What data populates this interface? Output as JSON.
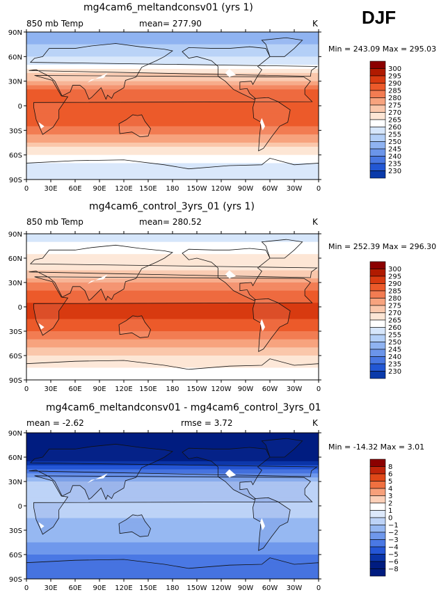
{
  "season": "DJF",
  "x_ticks": [
    "0",
    "30E",
    "60E",
    "90E",
    "120E",
    "150E",
    "180",
    "150W",
    "120W",
    "90W",
    "60W",
    "30W",
    "0"
  ],
  "y_ticks": [
    "90N",
    "60N",
    "30N",
    "0",
    "30S",
    "60S",
    "90S"
  ],
  "panels": [
    {
      "title": "mg4cam6_meltandconsv01 (yrs 1)",
      "left_label": "850  mb Temp",
      "mean_label": "mean= 277.90",
      "rmse_label": "",
      "units": "K",
      "minmax": "Min = 243.09  Max = 295.03",
      "colorbar_levels": [
        "300",
        "295",
        "290",
        "285",
        "280",
        "275",
        "270",
        "265",
        "260",
        "255",
        "250",
        "245",
        "240",
        "235",
        "230"
      ]
    },
    {
      "title": "mg4cam6_control_3yrs_01 (yrs 1)",
      "left_label": "850  mb Temp",
      "mean_label": "mean= 280.52",
      "rmse_label": "",
      "units": "K",
      "minmax": "Min = 252.39  Max = 296.30",
      "colorbar_levels": [
        "300",
        "295",
        "290",
        "285",
        "280",
        "275",
        "270",
        "265",
        "260",
        "255",
        "250",
        "245",
        "240",
        "235",
        "230"
      ]
    },
    {
      "title": "mg4cam6_meltandconsv01 - mg4cam6_control_3yrs_01",
      "left_label": "mean =   -2.62",
      "mean_label": "rmse =    3.72",
      "rmse_label": "",
      "units": "K",
      "minmax": "Min =  -14.32  Max =    3.01",
      "colorbar_levels": [
        "8",
        "6",
        "5",
        "4",
        "3",
        "2",
        "1",
        "0",
        "−1",
        "−2",
        "−3",
        "−4",
        "−5",
        "−6",
        "−8"
      ]
    }
  ],
  "colors": {
    "temp_scale": [
      "#8b0000",
      "#b01a00",
      "#d83a10",
      "#ec5a2a",
      "#f27c52",
      "#f7a37e",
      "#fac7ab",
      "#fde6d5",
      "#ffffff",
      "#d6e6fb",
      "#b3cff7",
      "#8fb3f1",
      "#6b95ea",
      "#4877e2",
      "#2257d4",
      "#0a3aaa",
      "#00207a"
    ],
    "diff_scale": [
      "#8b0000",
      "#c0240a",
      "#e04818",
      "#f07040",
      "#f7a07a",
      "#fcd0b8",
      "#ffffff",
      "#dde9fb",
      "#bdd3f7",
      "#96b8f2",
      "#6f98ec",
      "#4a78e4",
      "#2456d6",
      "#0a34a8",
      "#001c80"
    ]
  },
  "chart_data": [
    {
      "type": "heatmap",
      "title": "mg4cam6_meltandconsv01 (yrs 1)",
      "variable": "850 mb Temp",
      "units": "K",
      "mean": 277.9,
      "min": 243.09,
      "max": 295.03,
      "x_range": [
        0,
        360
      ],
      "y_range": [
        -90,
        90
      ],
      "color_levels": [
        230,
        235,
        240,
        245,
        250,
        255,
        260,
        265,
        270,
        275,
        280,
        285,
        290,
        295,
        300
      ],
      "zonal_mean_by_lat": {
        "lat": [
          90,
          75,
          60,
          45,
          30,
          15,
          0,
          -15,
          -30,
          -45,
          -60,
          -75,
          -90
        ],
        "value": [
          245,
          250,
          256,
          264,
          277,
          287,
          290,
          289,
          283,
          274,
          265,
          258,
          255
        ]
      }
    },
    {
      "type": "heatmap",
      "title": "mg4cam6_control_3yrs_01 (yrs 1)",
      "variable": "850 mb Temp",
      "units": "K",
      "mean": 280.52,
      "min": 252.39,
      "max": 296.3,
      "x_range": [
        0,
        360
      ],
      "y_range": [
        -90,
        90
      ],
      "color_levels": [
        230,
        235,
        240,
        245,
        250,
        255,
        260,
        265,
        270,
        275,
        280,
        285,
        290,
        295,
        300
      ],
      "zonal_mean_by_lat": {
        "lat": [
          90,
          75,
          60,
          45,
          30,
          15,
          0,
          -15,
          -30,
          -45,
          -60,
          -75,
          -90
        ],
        "value": [
          258,
          262,
          266,
          270,
          279,
          288,
          291,
          290,
          285,
          277,
          270,
          265,
          262
        ]
      }
    },
    {
      "type": "heatmap",
      "title": "mg4cam6_meltandconsv01 - mg4cam6_control_3yrs_01",
      "units": "K",
      "mean": -2.62,
      "rmse": 3.72,
      "min": -14.32,
      "max": 3.01,
      "x_range": [
        0,
        360
      ],
      "y_range": [
        -90,
        90
      ],
      "color_levels": [
        -8,
        -6,
        -5,
        -4,
        -3,
        -2,
        -1,
        0,
        1,
        2,
        3,
        4,
        5,
        6,
        8
      ],
      "zonal_mean_by_lat": {
        "lat": [
          90,
          75,
          60,
          45,
          30,
          15,
          0,
          -15,
          -30,
          -45,
          -60,
          -75,
          -90
        ],
        "value": [
          -12,
          -11,
          -9,
          -5,
          -2,
          -1.5,
          -1.5,
          -2,
          -2.5,
          -3,
          -4,
          -5,
          -4
        ]
      }
    }
  ]
}
